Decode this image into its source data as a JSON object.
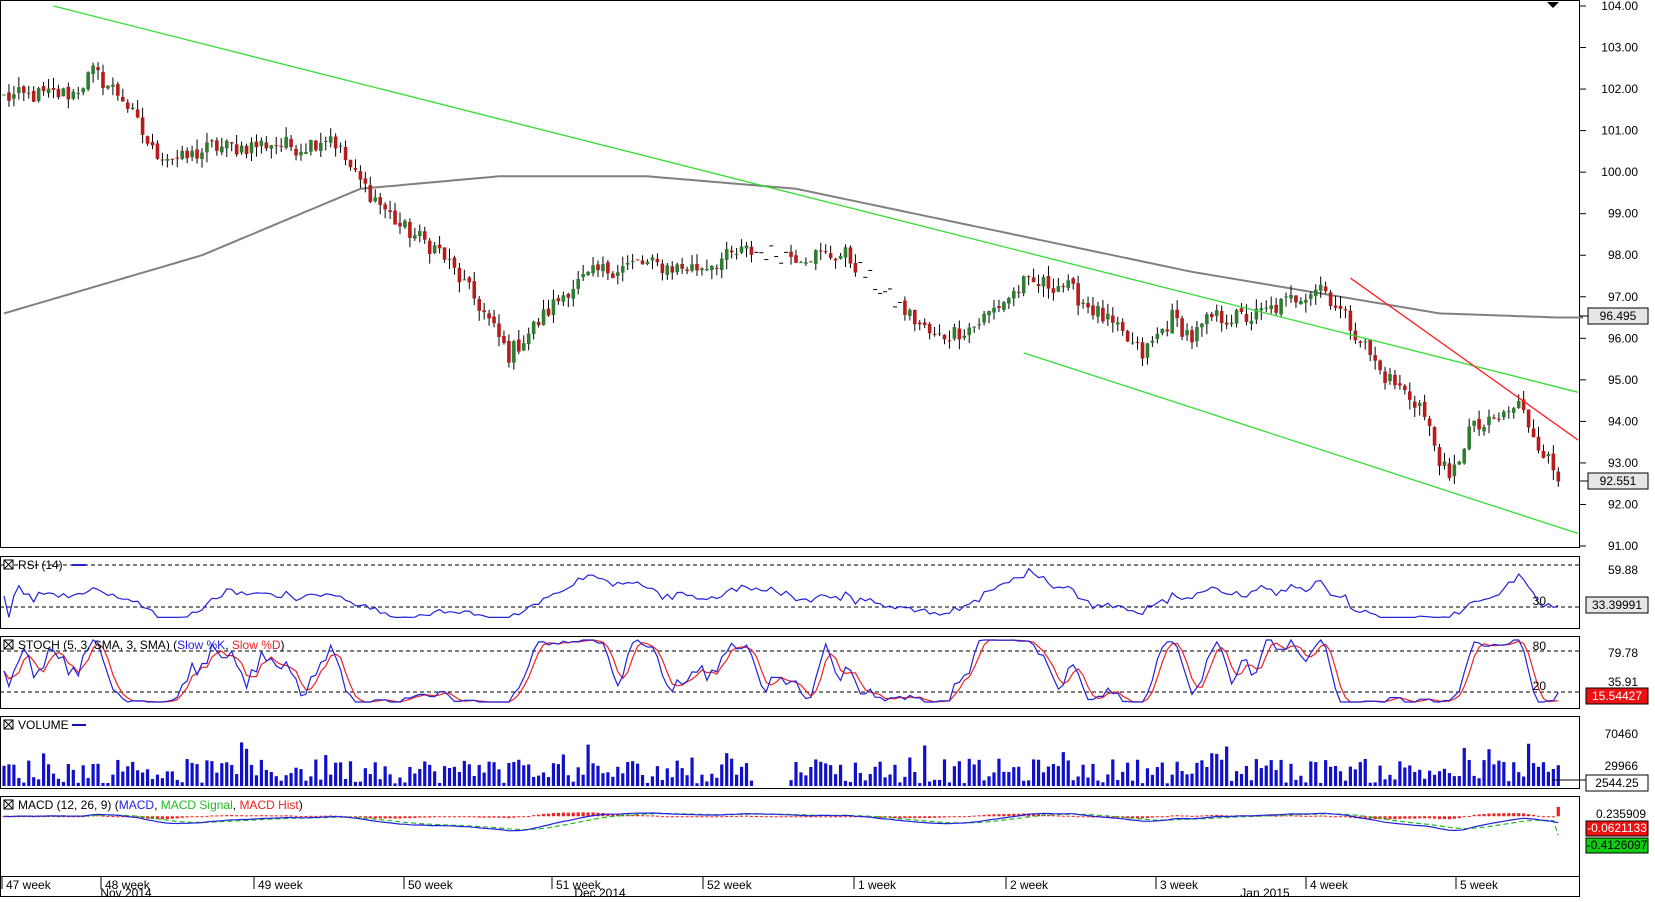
{
  "colors": {
    "bull": "#2e7d32",
    "bear": "#b71c1c",
    "wick": "#000000",
    "ma": "#808080",
    "channel": "#33dd33",
    "resistance": "#ff2020",
    "rsi": "#2222dd",
    "stoch_k": "#2222dd",
    "stoch_d": "#ee2222",
    "volume": "#1010cc",
    "macd": "#2222dd",
    "macd_signal": "#22bb22",
    "macd_hist": "#ee2222",
    "badge_stoch": "#ee1111",
    "badge_macd_hist": "#ee1111",
    "badge_macd_signal": "#11cc11",
    "grid": "#000000"
  },
  "chart_data": [
    {
      "type": "candlestick",
      "panel": "price",
      "y_ticks": [
        "104.00",
        "103.00",
        "102.00",
        "101.00",
        "100.00",
        "99.00",
        "98.00",
        "97.00",
        "96.00",
        "95.00",
        "94.00",
        "93.00",
        "92.00",
        "91.00"
      ],
      "ylim": [
        91.0,
        104.0
      ],
      "last_price_label": "92.551",
      "last_price": 92.551,
      "ma_label": "96.495",
      "ma_value": 96.495,
      "anchors": [
        [
          0,
          101.8
        ],
        [
          14,
          101.9
        ],
        [
          18,
          102.4
        ],
        [
          24,
          101.8
        ],
        [
          30,
          100.5
        ],
        [
          36,
          100.3
        ],
        [
          42,
          100.6
        ],
        [
          48,
          100.6
        ],
        [
          54,
          100.7
        ],
        [
          60,
          100.6
        ],
        [
          66,
          100.9
        ],
        [
          71,
          99.9
        ],
        [
          80,
          98.7
        ],
        [
          88,
          98.1
        ],
        [
          96,
          96.8
        ],
        [
          102,
          95.6
        ],
        [
          108,
          96.4
        ],
        [
          114,
          97.2
        ],
        [
          120,
          97.6
        ],
        [
          128,
          97.8
        ],
        [
          136,
          97.7
        ],
        [
          140,
          97.7
        ],
        [
          150,
          98.1
        ],
        [
          160,
          98.0
        ],
        [
          170,
          98.0
        ],
        [
          176,
          97.3
        ],
        [
          188,
          96.0
        ],
        [
          196,
          96.3
        ],
        [
          206,
          97.3
        ],
        [
          214,
          97.3
        ],
        [
          222,
          96.5
        ],
        [
          230,
          95.6
        ],
        [
          236,
          96.5
        ],
        [
          240,
          96.0
        ],
        [
          244,
          96.5
        ],
        [
          252,
          96.5
        ],
        [
          258,
          96.8
        ],
        [
          266,
          97.3
        ],
        [
          274,
          96.0
        ],
        [
          278,
          95.2
        ],
        [
          286,
          94.4
        ],
        [
          292,
          92.5
        ],
        [
          296,
          93.8
        ],
        [
          300,
          93.9
        ],
        [
          306,
          94.4
        ],
        [
          310,
          93.5
        ],
        [
          314,
          92.6
        ]
      ],
      "ma_points": [
        [
          0,
          96.6
        ],
        [
          40,
          98.0
        ],
        [
          72,
          99.6
        ],
        [
          100,
          99.9
        ],
        [
          130,
          99.9
        ],
        [
          160,
          99.6
        ],
        [
          200,
          98.6
        ],
        [
          240,
          97.6
        ],
        [
          290,
          96.6
        ],
        [
          314,
          96.5
        ]
      ],
      "trendlines": [
        {
          "color": "channel",
          "points": [
            [
              10,
              104.0
            ],
            [
              318,
              94.7
            ]
          ]
        },
        {
          "color": "channel",
          "points": [
            [
              206,
              95.65
            ],
            [
              318,
              91.3
            ]
          ]
        },
        {
          "color": "resistance",
          "points": [
            [
              272,
              97.45
            ],
            [
              318,
              93.55
            ]
          ]
        }
      ]
    },
    {
      "type": "line",
      "panel": "rsi",
      "title": "RSI (14)",
      "ylim": [
        0,
        100
      ],
      "levels": [
        70,
        30
      ],
      "y_ticks": [
        "59.88",
        "30"
      ],
      "current_label": "33.39991",
      "current": 33.39991
    },
    {
      "type": "line",
      "panel": "stochastic",
      "title": "STOCH (5, 3, SMA, 3, SMA)",
      "series": [
        {
          "name": "Slow %K"
        },
        {
          "name": "Slow %D"
        }
      ],
      "ylim": [
        0,
        100
      ],
      "levels": [
        80,
        20
      ],
      "y_ticks": [
        "80",
        "79.78",
        "35.91",
        "20"
      ],
      "current_label": "15.54427",
      "current": 15.54427
    },
    {
      "type": "bar",
      "panel": "volume",
      "title": "VOLUME",
      "ylim": [
        0,
        95000
      ],
      "y_ticks": [
        "70460",
        "29966"
      ],
      "current_label": "2544.25",
      "current": 2544.25
    },
    {
      "type": "line",
      "panel": "macd",
      "title": "MACD (12, 26, 9)",
      "series": [
        {
          "name": "MACD"
        },
        {
          "name": "MACD Signal"
        },
        {
          "name": "MACD Hist"
        }
      ],
      "ylim": [
        -1.2,
        0.35
      ],
      "y_ticks": [
        "0.235909"
      ],
      "hist_label": "-0.0621133",
      "hist_current": -0.0621133,
      "signal_label": "-0.4126097",
      "signal_current": -0.4126097
    }
  ],
  "x_axis": {
    "weeks": [
      "47 week",
      "48 week",
      "49 week",
      "50 week",
      "51 week",
      "52 week",
      "1 week",
      "2 week",
      "3 week",
      "4 week",
      "5 week"
    ],
    "months": [
      "Nov 2014",
      "Dec 2014",
      "Jan 2015"
    ]
  },
  "panels": {
    "rsi_header": "RSI (14)",
    "stoch_header": "STOCH (5, 3, SMA, 3, SMA)",
    "stoch_k_name": "Slow %K",
    "stoch_d_name": "Slow %D",
    "volume_header": "VOLUME",
    "macd_header": "MACD (12, 26, 9)",
    "macd_name": "MACD",
    "macd_signal_name": "MACD Signal",
    "macd_hist_name": "MACD Hist"
  }
}
